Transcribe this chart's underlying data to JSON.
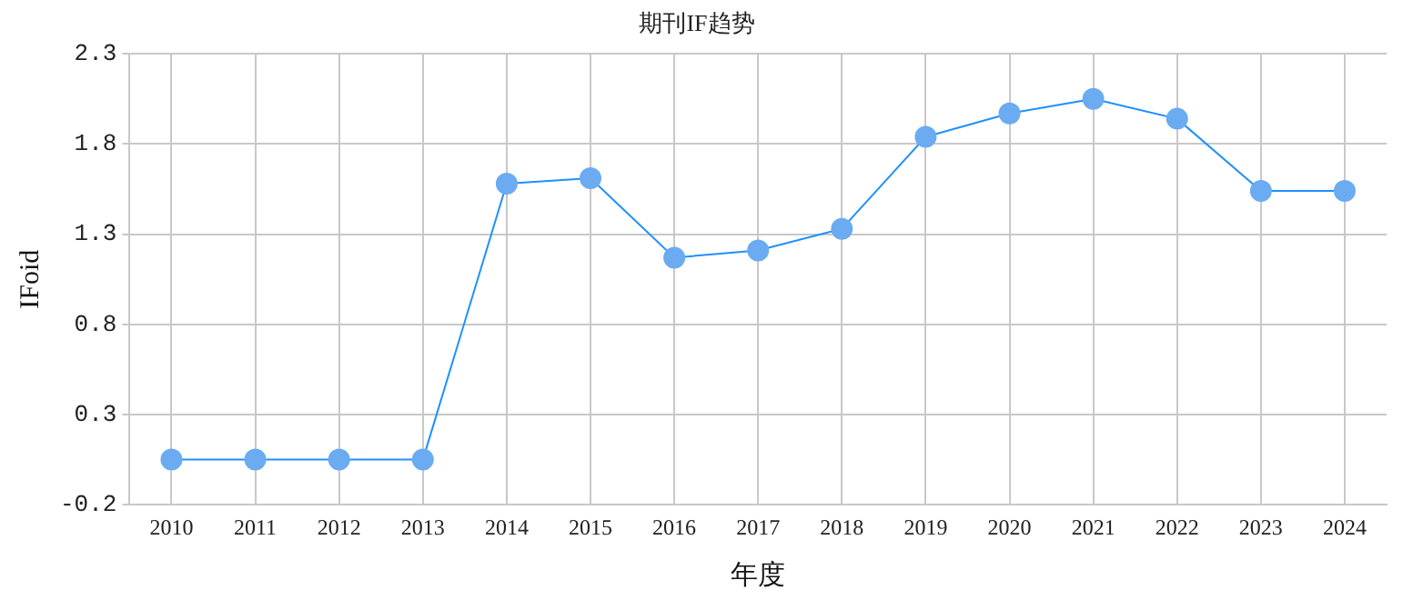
{
  "chart_data": {
    "type": "line",
    "title": "期刊IF趋势",
    "xlabel": "年度",
    "ylabel": "IFoid",
    "categories": [
      "2010",
      "2011",
      "2012",
      "2013",
      "2014",
      "2015",
      "2016",
      "2017",
      "2018",
      "2019",
      "2020",
      "2021",
      "2022",
      "2023",
      "2024"
    ],
    "series": [
      {
        "color": "#1e90ff",
        "values": [
          0.05,
          0.05,
          0.05,
          0.05,
          1.58,
          1.61,
          1.17,
          1.21,
          1.33,
          1.84,
          1.97,
          2.05,
          1.94,
          1.54,
          1.54
        ]
      }
    ],
    "ylim": [
      -0.2,
      2.3
    ],
    "yticks": [
      -0.2,
      0.3,
      0.8,
      1.3,
      1.8,
      2.3
    ],
    "grid": true,
    "marker": "circle",
    "line_style": "solid",
    "legend": false
  }
}
